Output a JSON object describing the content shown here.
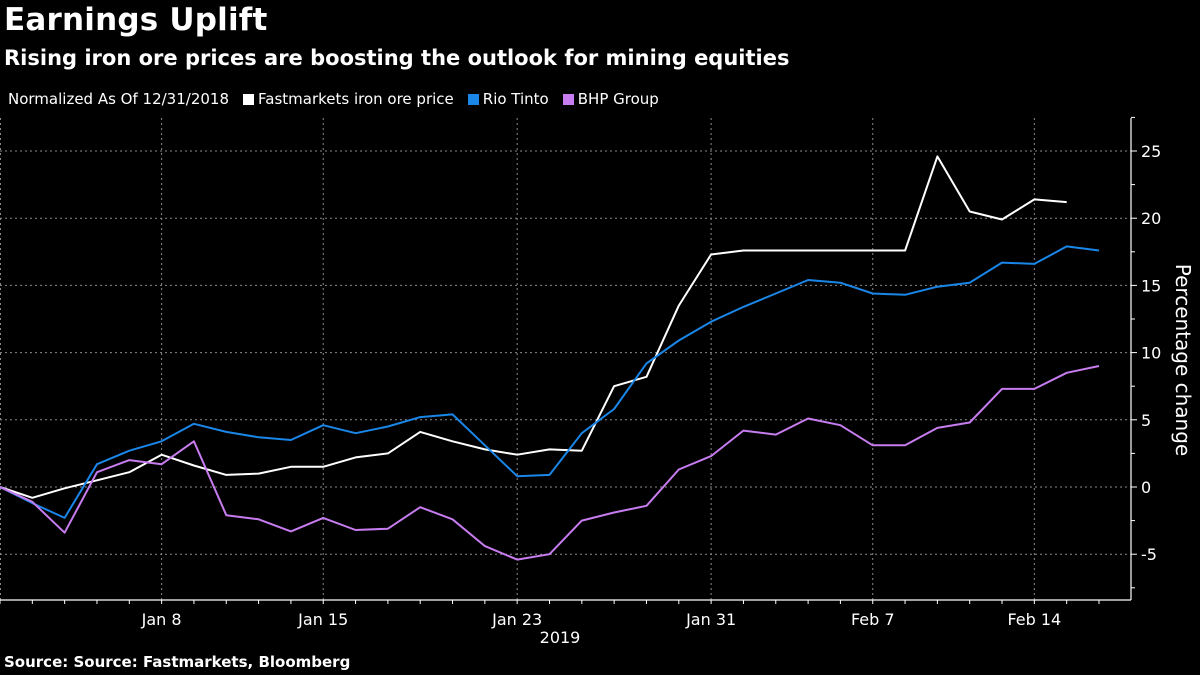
{
  "header": {
    "title": "Earnings Uplift",
    "subtitle": "Rising iron ore prices are boosting the outlook for mining equities"
  },
  "legend": {
    "note": "Normalized As Of 12/31/2018",
    "items": [
      {
        "label": "Fastmarkets iron ore price",
        "color": "#ffffff"
      },
      {
        "label": "Rio Tinto",
        "color": "#1a86e8"
      },
      {
        "label": "BHP Group",
        "color": "#c77cf0"
      }
    ]
  },
  "footer": {
    "source": "Source: Source: Fastmarkets, Bloomberg"
  },
  "chart_data": {
    "type": "line",
    "title": "Earnings Uplift",
    "subtitle": "Rising iron ore prices are boosting the outlook for mining equities",
    "xlabel": "2019",
    "ylabel": "Percentage change",
    "ylim": [
      -8.5,
      27.5
    ],
    "yticks": [
      -5,
      0,
      5,
      10,
      15,
      20,
      25
    ],
    "x_tick_labels": [
      {
        "label": "Jan 8",
        "index": 5
      },
      {
        "label": "Jan 15",
        "index": 10
      },
      {
        "label": "Jan 23",
        "index": 16
      },
      {
        "label": "Jan 31",
        "index": 22
      },
      {
        "label": "Feb 7",
        "index": 27
      },
      {
        "label": "Feb 14",
        "index": 32
      }
    ],
    "x_points": 35,
    "grid": true,
    "legend_position": "top-left",
    "y_axis_side": "right",
    "series": [
      {
        "name": "Fastmarkets iron ore price",
        "color": "#ffffff",
        "values": [
          0,
          -0.8,
          -0.1,
          0.5,
          1.1,
          2.4,
          1.6,
          0.9,
          1.0,
          1.5,
          1.5,
          2.2,
          2.5,
          4.1,
          3.4,
          2.8,
          2.4,
          2.8,
          2.7,
          7.5,
          8.2,
          13.5,
          17.3,
          17.6,
          17.6,
          17.6,
          17.6,
          17.6,
          17.6,
          24.6,
          20.5,
          19.9,
          21.4,
          21.2,
          null
        ]
      },
      {
        "name": "Rio Tinto",
        "color": "#1a86e8",
        "values": [
          0,
          -1.2,
          -2.3,
          1.7,
          2.7,
          3.4,
          4.7,
          4.1,
          3.7,
          3.5,
          4.6,
          4.0,
          4.5,
          5.2,
          5.4,
          3.1,
          0.8,
          0.9,
          4.0,
          5.8,
          9.2,
          10.9,
          12.3,
          13.4,
          14.4,
          15.4,
          15.2,
          14.4,
          14.3,
          14.9,
          15.2,
          16.7,
          16.6,
          17.9,
          17.6
        ]
      },
      {
        "name": "BHP Group",
        "color": "#c77cf0",
        "values": [
          0,
          -1.1,
          -3.4,
          1.1,
          2.0,
          1.7,
          3.4,
          -2.1,
          -2.4,
          -3.3,
          -2.3,
          -3.2,
          -3.1,
          -1.5,
          -2.4,
          -4.4,
          -5.4,
          -5.0,
          -2.5,
          -1.9,
          -1.4,
          1.3,
          2.3,
          4.2,
          3.9,
          5.1,
          4.6,
          3.1,
          3.1,
          4.4,
          4.8,
          7.3,
          7.3,
          8.5,
          9.0
        ]
      }
    ]
  }
}
